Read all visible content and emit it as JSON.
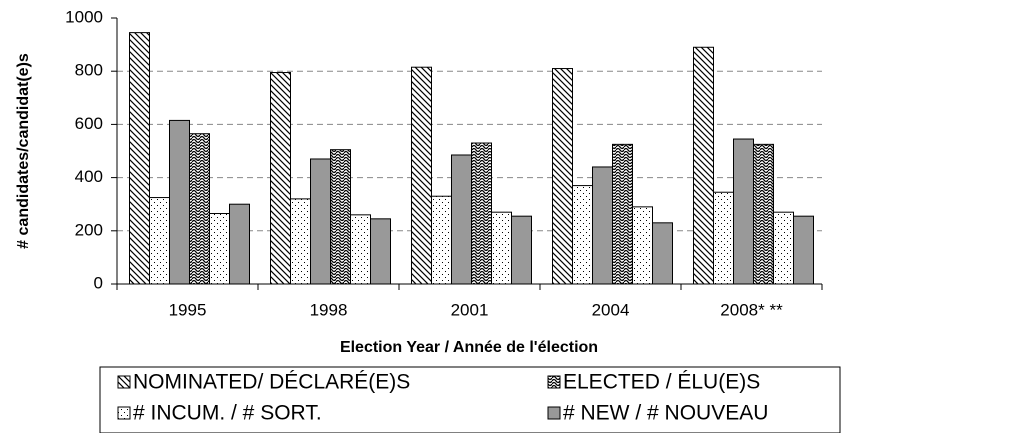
{
  "chart_data": {
    "type": "bar",
    "y_label": "# candidates/candidat(e)s",
    "x_label": "Election Year / Année  de l'élection",
    "categories": [
      "1995",
      "1998",
      "2001",
      "2004",
      "2008*   **"
    ],
    "series": [
      {
        "name": "NOMINATED/ DÉCLARÉ(E)S",
        "color": "#000000",
        "pattern": "diagonal",
        "values": [
          945,
          795,
          815,
          810,
          890
        ]
      },
      {
        "name": "# INCUM. / # SORT.",
        "color": "#000000",
        "pattern": "dots",
        "values": [
          325,
          320,
          330,
          370,
          345
        ]
      },
      {
        "name": "# NEW  /  # NOUVEAU",
        "color": "#999999",
        "pattern": "solid",
        "values": [
          615,
          470,
          485,
          440,
          545
        ]
      },
      {
        "name": "ELECTED / ÉLU(E)S",
        "color": "#000000",
        "pattern": "wave",
        "values": [
          565,
          505,
          530,
          525,
          525
        ]
      },
      {
        "color": "#000000",
        "pattern": "dots",
        "values": [
          265,
          260,
          270,
          290,
          270
        ]
      },
      {
        "color": "#999999",
        "pattern": "solid",
        "values": [
          300,
          245,
          255,
          230,
          255
        ]
      }
    ],
    "ylim": [
      0,
      1000
    ],
    "yticks": [
      0,
      200,
      400,
      600,
      800,
      1000
    ],
    "grid": true
  }
}
